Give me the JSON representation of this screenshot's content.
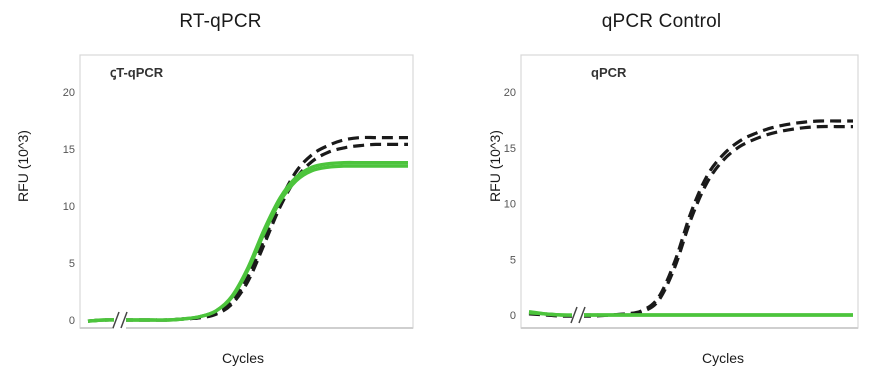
{
  "chart_data": [
    {
      "type": "line",
      "title": "RT-qPCR",
      "inset_label": "ꞔT-qPCR",
      "xlabel": "Cycles",
      "ylabel": "RFU (10^3)",
      "ylim": [
        0,
        20
      ],
      "yticks": [
        "0",
        "5",
        "10",
        "15",
        "20"
      ],
      "axis_break": true,
      "grid": false,
      "x": [
        0,
        5,
        10,
        15,
        20,
        25,
        30,
        35,
        40,
        45,
        50,
        55,
        60,
        65,
        70,
        75,
        80,
        85,
        90,
        95,
        100
      ],
      "series": [
        {
          "style": "dashed",
          "color": "#1a1a1a",
          "values": [
            -0.1,
            0.0,
            0.0,
            0.0,
            0.0,
            0.0,
            0.1,
            0.2,
            0.6,
            1.6,
            3.8,
            7.0,
            10.4,
            13.0,
            14.5,
            15.3,
            15.8,
            16.0,
            16.0,
            16.0,
            16.0
          ]
        },
        {
          "style": "dashed",
          "color": "#1a1a1a",
          "values": [
            -0.1,
            0.0,
            0.0,
            0.0,
            0.0,
            0.0,
            0.1,
            0.2,
            0.5,
            1.4,
            3.4,
            6.6,
            9.9,
            12.4,
            13.9,
            14.7,
            15.1,
            15.3,
            15.4,
            15.4,
            15.4
          ]
        },
        {
          "style": "solid",
          "color": "#4cc43c",
          "values": [
            -0.1,
            0.0,
            0.0,
            0.0,
            0.0,
            0.0,
            0.1,
            0.3,
            0.8,
            2.1,
            4.6,
            7.9,
            10.7,
            12.5,
            13.4,
            13.7,
            13.8,
            13.8,
            13.8,
            13.8,
            13.8
          ]
        },
        {
          "style": "solid",
          "color": "#4cc43c",
          "values": [
            -0.1,
            0.0,
            0.0,
            0.0,
            0.0,
            0.0,
            0.1,
            0.3,
            0.8,
            2.0,
            4.4,
            7.6,
            10.4,
            12.2,
            13.1,
            13.4,
            13.5,
            13.5,
            13.5,
            13.5,
            13.5
          ]
        }
      ]
    },
    {
      "type": "line",
      "title": "qPCR Control",
      "inset_label": "qPCR",
      "xlabel": "Cycles",
      "ylabel": "RFU (10^3)",
      "ylim": [
        0,
        20
      ],
      "yticks": [
        "0",
        "5",
        "10",
        "15",
        "20"
      ],
      "axis_break": true,
      "grid": false,
      "x": [
        0,
        5,
        10,
        15,
        20,
        25,
        30,
        35,
        40,
        45,
        50,
        55,
        60,
        65,
        70,
        75,
        80,
        85,
        90,
        95,
        100
      ],
      "series": [
        {
          "style": "dashed",
          "color": "#1a1a1a",
          "values": [
            0.2,
            0.1,
            0.0,
            0.0,
            0.0,
            0.0,
            0.1,
            0.4,
            1.6,
            4.8,
            9.2,
            12.5,
            14.4,
            15.6,
            16.3,
            16.8,
            17.1,
            17.3,
            17.4,
            17.4,
            17.4
          ]
        },
        {
          "style": "dashed",
          "color": "#1a1a1a",
          "values": [
            0.1,
            0.0,
            -0.1,
            -0.1,
            -0.1,
            0.0,
            0.1,
            0.3,
            1.3,
            4.3,
            8.6,
            11.9,
            13.9,
            15.1,
            15.8,
            16.3,
            16.6,
            16.8,
            16.9,
            16.9,
            16.9
          ]
        },
        {
          "style": "solid",
          "color": "#4cc43c",
          "values": [
            0.2,
            0.1,
            0.0,
            0.0,
            0.0,
            0.0,
            0.0,
            0.0,
            0.0,
            0.0,
            0.0,
            0.0,
            0.0,
            0.0,
            0.0,
            0.0,
            0.0,
            0.0,
            0.0,
            0.0,
            0.0
          ]
        },
        {
          "style": "solid",
          "color": "#4cc43c",
          "values": [
            0.3,
            0.1,
            0.0,
            0.0,
            0.0,
            0.0,
            0.0,
            0.0,
            0.0,
            0.0,
            0.0,
            0.0,
            0.0,
            0.0,
            0.0,
            0.0,
            0.0,
            0.0,
            0.0,
            0.0,
            0.0
          ]
        }
      ]
    }
  ]
}
